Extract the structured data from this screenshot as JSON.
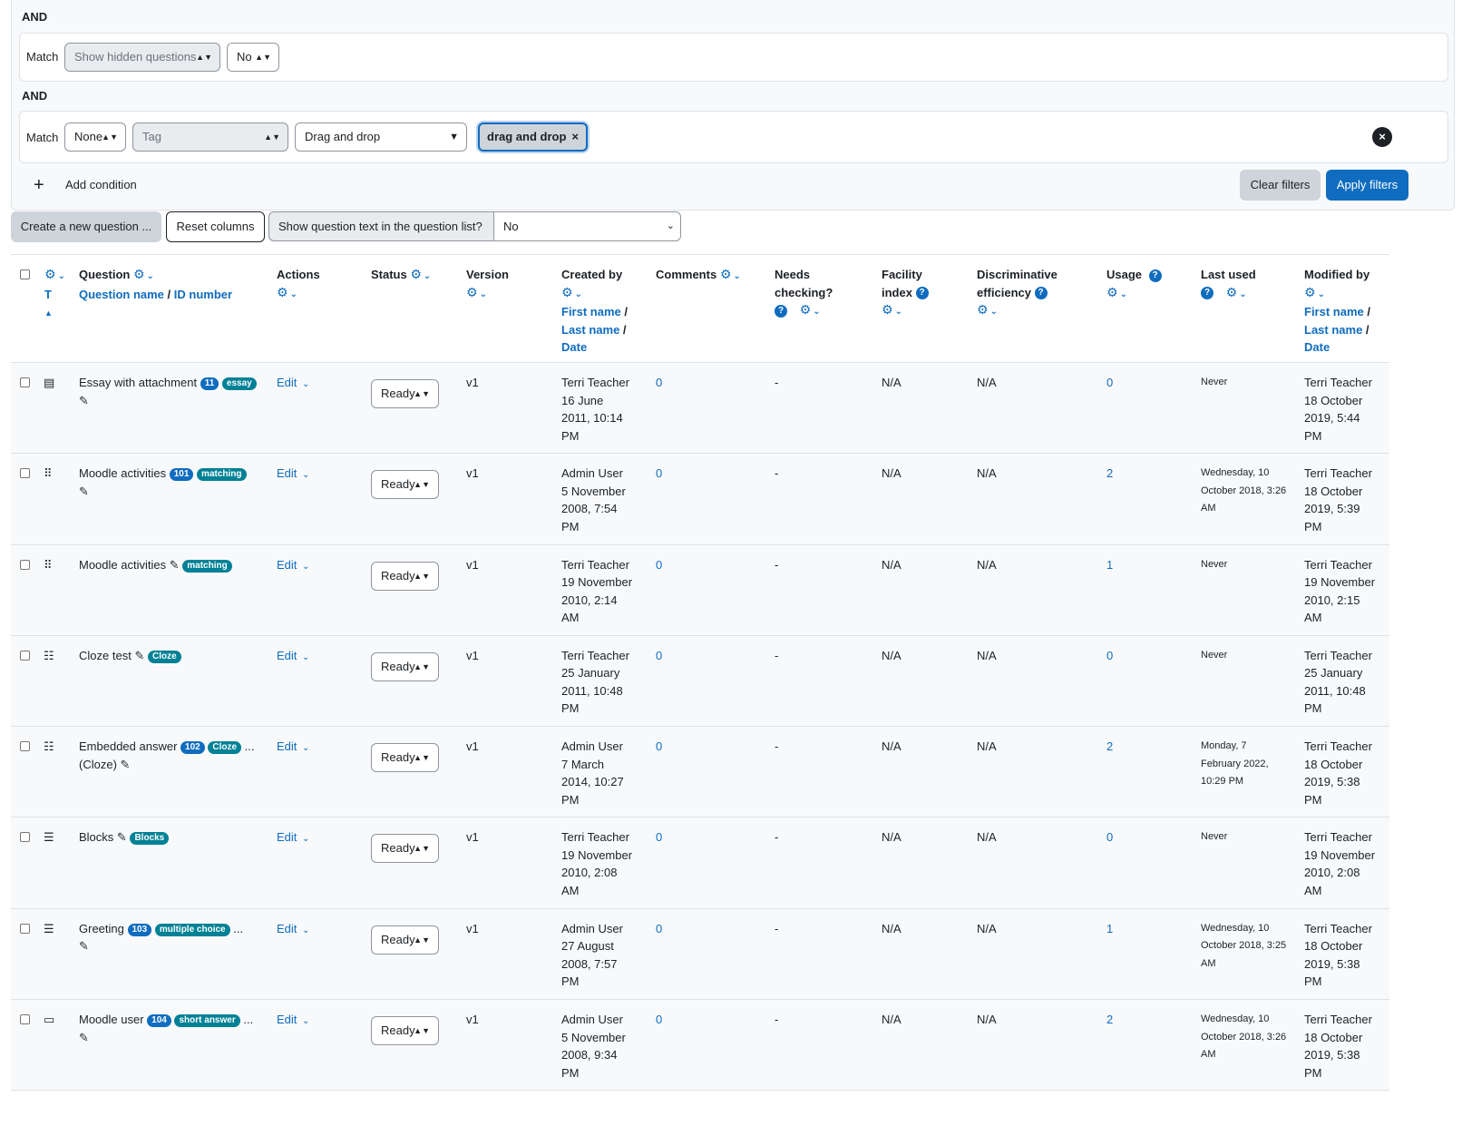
{
  "filters": {
    "and1": "AND",
    "and2": "AND",
    "match_label": "Match",
    "cond1": {
      "field": "Show hidden questions",
      "value": "No"
    },
    "cond2": {
      "join": "None",
      "field": "Tag",
      "value": "Drag and drop",
      "chip": "drag and drop"
    },
    "add_condition": "Add condition",
    "clear_filters": "Clear filters",
    "apply_filters": "Apply filters"
  },
  "toolbar": {
    "create": "Create a new question ...",
    "reset": "Reset columns",
    "show_text_label": "Show question text in the question list?",
    "show_text_value": "No"
  },
  "columns": {
    "t": "T",
    "question": "Question",
    "question_name": "Question name",
    "id_number": "ID number",
    "actions": "Actions",
    "status": "Status",
    "version": "Version",
    "created_by": "Created by",
    "first_name": "First name",
    "last_name": "Last name",
    "date": "Date",
    "comments": "Comments",
    "needs_checking_1": "Needs",
    "needs_checking_2": "checking?",
    "facility_1": "Facility",
    "facility_2": "index",
    "disc_1": "Discriminative",
    "disc_2": "efficiency",
    "usage": "Usage",
    "last_used": "Last used",
    "modified_by": "Modified by"
  },
  "rows": [
    {
      "icon": "essay-icon",
      "glyph": "▤",
      "name1": "Essay with attachment",
      "name2": "",
      "id": "11",
      "type": "essay",
      "more": "",
      "created": [
        "Terri Teacher",
        "16 June",
        "2011, 10:14",
        "PM"
      ],
      "comments": "0",
      "needs": "-",
      "facility": "N/A",
      "disc": "N/A",
      "usage": "0",
      "last_used": [
        "Never"
      ],
      "modified": [
        "Terri Teacher",
        "18 October",
        "2019, 5:44",
        "PM"
      ]
    },
    {
      "icon": "matching-icon",
      "glyph": "⠿",
      "name1": "Moodle activities",
      "name2": "",
      "id": "101",
      "type": "matching",
      "more": "",
      "created": [
        "Admin User",
        "5 November",
        "2008, 7:54",
        "PM"
      ],
      "comments": "0",
      "needs": "-",
      "facility": "N/A",
      "disc": "N/A",
      "usage": "2",
      "last_used": [
        "Wednesday, 10",
        "October 2018, 3:26",
        "AM"
      ],
      "modified": [
        "Terri Teacher",
        "18 October",
        "2019, 5:39",
        "PM"
      ]
    },
    {
      "icon": "matching-icon",
      "glyph": "⠿",
      "name1": "Moodle activities",
      "name2": "",
      "id": "",
      "type": "matching",
      "more": "",
      "created": [
        "Terri Teacher",
        "19 November",
        "2010, 2:14",
        "AM"
      ],
      "comments": "0",
      "needs": "-",
      "facility": "N/A",
      "disc": "N/A",
      "usage": "1",
      "last_used": [
        "Never"
      ],
      "modified": [
        "Terri Teacher",
        "19 November",
        "2010, 2:15",
        "AM"
      ]
    },
    {
      "icon": "cloze-icon",
      "glyph": "☷",
      "name1": "Cloze test",
      "name2": "",
      "id": "",
      "type": "Cloze",
      "more": "",
      "created": [
        "Terri Teacher",
        "25 January",
        "2011, 10:48",
        "PM"
      ],
      "comments": "0",
      "needs": "-",
      "facility": "N/A",
      "disc": "N/A",
      "usage": "0",
      "last_used": [
        "Never"
      ],
      "modified": [
        "Terri Teacher",
        "25 January",
        "2011, 10:48",
        "PM"
      ]
    },
    {
      "icon": "cloze-icon",
      "glyph": "☷",
      "name1": "Embedded answer",
      "name2": "(Cloze)",
      "id": "102",
      "type": "Cloze",
      "more": "...",
      "created": [
        "Admin User",
        "7 March",
        "2014, 10:27",
        "PM"
      ],
      "comments": "0",
      "needs": "-",
      "facility": "N/A",
      "disc": "N/A",
      "usage": "2",
      "last_used": [
        "Monday, 7",
        "February 2022,",
        "10:29 PM"
      ],
      "modified": [
        "Terri Teacher",
        "18 October",
        "2019, 5:38",
        "PM"
      ]
    },
    {
      "icon": "multichoice-icon",
      "glyph": "☰",
      "name1": "Blocks",
      "name2": "",
      "id": "",
      "type": "Blocks",
      "more": "",
      "created": [
        "Terri Teacher",
        "19 November",
        "2010, 2:08",
        "AM"
      ],
      "comments": "0",
      "needs": "-",
      "facility": "N/A",
      "disc": "N/A",
      "usage": "0",
      "last_used": [
        "Never"
      ],
      "modified": [
        "Terri Teacher",
        "19 November",
        "2010, 2:08",
        "AM"
      ]
    },
    {
      "icon": "multichoice-icon",
      "glyph": "☰",
      "name1": "Greeting",
      "name2": "",
      "id": "103",
      "type": "multiple choice",
      "more": "...",
      "created": [
        "Admin User",
        "27 August",
        "2008, 7:57",
        "PM"
      ],
      "comments": "0",
      "needs": "-",
      "facility": "N/A",
      "disc": "N/A",
      "usage": "1",
      "last_used": [
        "Wednesday, 10",
        "October 2018, 3:25",
        "AM"
      ],
      "modified": [
        "Terri Teacher",
        "18 October",
        "2019, 5:38",
        "PM"
      ]
    },
    {
      "icon": "shortanswer-icon",
      "glyph": "▭",
      "name1": "Moodle user",
      "name2": "",
      "id": "104",
      "type": "short answer",
      "more": "...",
      "created": [
        "Admin User",
        "5 November",
        "2008, 9:34",
        "PM"
      ],
      "comments": "0",
      "needs": "-",
      "facility": "N/A",
      "disc": "N/A",
      "usage": "2",
      "last_used": [
        "Wednesday, 10",
        "October 2018, 3:26",
        "AM"
      ],
      "modified": [
        "Terri Teacher",
        "18 October",
        "2019, 5:38",
        "PM"
      ]
    }
  ],
  "row_common": {
    "edit": "Edit",
    "status": "Ready",
    "version": "v1"
  }
}
